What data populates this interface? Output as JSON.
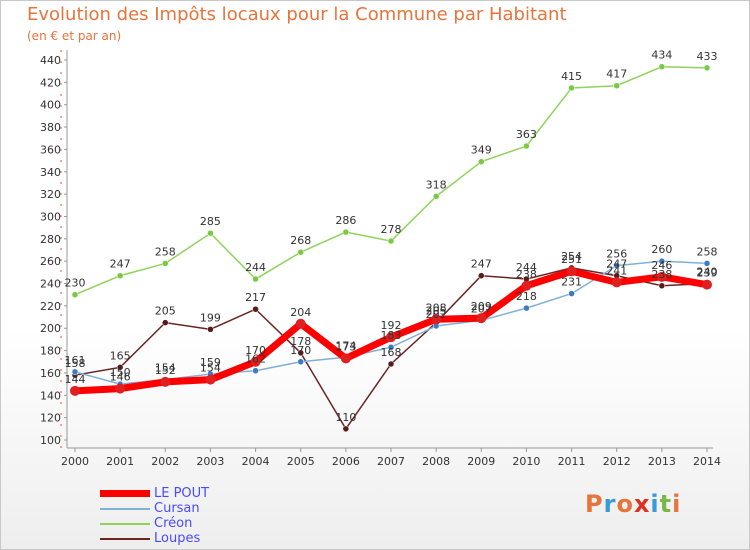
{
  "title": "Evolution des Impôts locaux pour la Commune par Habitant",
  "subtitle": "(en € et par an)",
  "logo": {
    "letters": [
      "P",
      "r",
      "o",
      "x",
      "i",
      "t",
      "i"
    ],
    "colors": [
      "#e8743b",
      "#3a9ad9",
      "#e8743b",
      "#e03020",
      "#3a9ad9",
      "#7ab648",
      "#e8743b"
    ]
  },
  "legend": [
    {
      "label": "LE POUT",
      "color": "#ff0000"
    },
    {
      "label": "Cursan",
      "color": "#7fb0d8"
    },
    {
      "label": "Créon",
      "color": "#8fd35a"
    },
    {
      "label": "Loupes",
      "color": "#6b2424"
    }
  ],
  "chart_data": {
    "type": "line",
    "title": "Evolution des Impôts locaux pour la Commune par Habitant",
    "subtitle": "(en € et par an)",
    "x": [
      "2000",
      "2001",
      "2002",
      "2003",
      "2004",
      "2005",
      "2006",
      "2007",
      "2008",
      "2009",
      "2010",
      "2011",
      "2012",
      "2013",
      "2014"
    ],
    "ylim": [
      100,
      440
    ],
    "yticks": [
      100,
      120,
      140,
      160,
      180,
      200,
      220,
      240,
      260,
      280,
      300,
      320,
      340,
      360,
      380,
      400,
      420,
      440
    ],
    "grid": false,
    "legend_position": "bottom-left",
    "series": [
      {
        "name": "LE POUT",
        "color": "#ff0000",
        "point_color": "#e02020",
        "width": 7,
        "values": [
          144,
          146,
          152,
          154,
          170,
          204,
          173,
          192,
          208,
          209,
          238,
          251,
          241,
          246,
          239
        ]
      },
      {
        "name": "Cursan",
        "color": "#7fb0d8",
        "point_color": "#3a7cc8",
        "width": 1.5,
        "values": [
          161,
          150,
          154,
          159,
          162,
          170,
          174,
          183,
          202,
          207,
          218,
          231,
          256,
          260,
          258
        ]
      },
      {
        "name": "Créon",
        "color": "#8fd35a",
        "point_color": "#7ac943",
        "width": 1.5,
        "values": [
          230,
          247,
          258,
          285,
          244,
          268,
          286,
          278,
          318,
          349,
          363,
          415,
          417,
          434,
          433
        ]
      },
      {
        "name": "Loupes",
        "color": "#6b2424",
        "point_color": "#5a1a1a",
        "width": 1.5,
        "values": [
          158,
          165,
          205,
          199,
          217,
          178,
          110,
          168,
          205,
          247,
          244,
          254,
          247,
          238,
          240
        ]
      }
    ]
  }
}
